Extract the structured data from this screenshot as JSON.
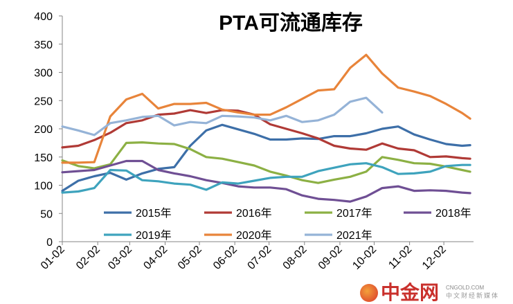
{
  "chart_data": {
    "type": "line",
    "title": "PTA可流通库存",
    "xlabel": "",
    "ylabel": "",
    "ylim": [
      0,
      400
    ],
    "yticks": [
      0,
      50,
      100,
      150,
      200,
      250,
      300,
      350,
      400
    ],
    "grid": false,
    "legend_position": "bottom-inside",
    "x_tick_labels": [
      "01-02",
      "02-02",
      "03-02",
      "04-02",
      "05-02",
      "06-02",
      "07-02",
      "08-02",
      "09-02",
      "10-02",
      "11-02",
      "12-02"
    ],
    "x": [
      "01-02",
      "01-16",
      "01-30",
      "02-13",
      "02-27",
      "03-13",
      "03-27",
      "04-10",
      "04-24",
      "05-08",
      "05-22",
      "06-05",
      "06-19",
      "07-03",
      "07-17",
      "07-31",
      "08-14",
      "08-28",
      "09-11",
      "09-25",
      "10-09",
      "10-23",
      "11-06",
      "11-20",
      "12-04",
      "12-18",
      "12-25"
    ],
    "series": [
      {
        "name": "2015年",
        "color": "#3d6fa8",
        "values": [
          90,
          108,
          116,
          122,
          110,
          121,
          129,
          132,
          170,
          197,
          207,
          199,
          191,
          181,
          181,
          183,
          182,
          187,
          187,
          192,
          200,
          204,
          190,
          181,
          173,
          170,
          171
        ]
      },
      {
        "name": "2016年",
        "color": "#b03a36",
        "values": [
          167,
          170,
          180,
          193,
          210,
          215,
          225,
          227,
          233,
          228,
          233,
          232,
          225,
          208,
          200,
          192,
          183,
          170,
          165,
          163,
          174,
          165,
          162,
          150,
          151,
          148,
          147
        ]
      },
      {
        "name": "2017年",
        "color": "#8cb044",
        "values": [
          144,
          134,
          130,
          137,
          175,
          176,
          174,
          173,
          164,
          150,
          147,
          141,
          135,
          124,
          117,
          109,
          104,
          110,
          115,
          124,
          150,
          145,
          139,
          138,
          133,
          127,
          124
        ]
      },
      {
        "name": "2018年",
        "color": "#6f4f94",
        "values": [
          123,
          125,
          127,
          135,
          143,
          143,
          127,
          121,
          116,
          109,
          104,
          98,
          96,
          96,
          93,
          82,
          76,
          74,
          71,
          80,
          95,
          98,
          90,
          91,
          90,
          87,
          86
        ]
      },
      {
        "name": "2019年",
        "color": "#3ea3bd",
        "values": [
          87,
          89,
          95,
          127,
          126,
          109,
          107,
          103,
          101,
          92,
          105,
          103,
          108,
          113,
          115,
          115,
          125,
          131,
          137,
          139,
          132,
          120,
          121,
          124,
          134,
          136,
          136
        ]
      },
      {
        "name": "2020年",
        "color": "#e8843a",
        "values": [
          140,
          140,
          141,
          222,
          252,
          262,
          236,
          244,
          244,
          246,
          234,
          229,
          225,
          225,
          238,
          253,
          268,
          270,
          308,
          331,
          298,
          273,
          266,
          258,
          244,
          228,
          218
        ]
      },
      {
        "name": "2021年",
        "color": "#95b3d7",
        "values": [
          204,
          197,
          189,
          210,
          215,
          221,
          223,
          206,
          212,
          210,
          223,
          222,
          220,
          215,
          223,
          212,
          215,
          225,
          248,
          255,
          229,
          null,
          null,
          null,
          null,
          null,
          null
        ]
      }
    ]
  },
  "logo": {
    "brand": "中金网",
    "domain": "CNGOLD.COM",
    "slogan": "中文财经新媒体"
  }
}
